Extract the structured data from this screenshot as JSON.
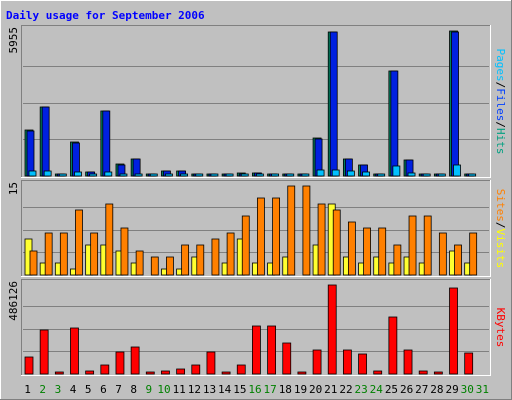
{
  "chart_data": {
    "type": "bar",
    "title": "Daily usage for September 2006",
    "days": [
      "1",
      "2",
      "3",
      "4",
      "5",
      "6",
      "7",
      "8",
      "9",
      "10",
      "11",
      "12",
      "13",
      "14",
      "15",
      "16",
      "17",
      "18",
      "19",
      "20",
      "21",
      "22",
      "23",
      "24",
      "25",
      "26",
      "27",
      "28",
      "29",
      "30",
      "31"
    ],
    "weekend_days": [
      "2",
      "3",
      "9",
      "10",
      "16",
      "17",
      "23",
      "24",
      "30",
      "31"
    ],
    "panels": [
      {
        "name": "pages-files-hits",
        "max_label": "5955",
        "ymax": 5955,
        "axis_label_parts": [
          {
            "text": "Pages",
            "color": "#00c0ff"
          },
          {
            "text": "/",
            "color": "#000000"
          },
          {
            "text": "Files",
            "color": "#0040ff"
          },
          {
            "text": "/",
            "color": "#000000"
          },
          {
            "text": "Hits",
            "color": "#00a080"
          }
        ],
        "series": [
          {
            "name": "Hits",
            "color": "#008060",
            "values": [
              1870,
              2850,
              80,
              1390,
              160,
              2680,
              480,
              710,
              40,
              200,
              210,
              60,
              70,
              40,
              110,
              140,
              80,
              60,
              40,
              1550,
              5920,
              700,
              450,
              50,
              4330,
              650,
              60,
              50,
              5955,
              80,
              0
            ]
          },
          {
            "name": "Files",
            "color": "#0020e0",
            "values": [
              1860,
              2830,
              70,
              1370,
              150,
              2660,
              470,
              700,
              40,
              200,
              200,
              50,
              60,
              40,
              100,
              130,
              70,
              60,
              40,
              1530,
              5900,
              690,
              440,
              50,
              4310,
              640,
              60,
              50,
              5900,
              70,
              0
            ]
          },
          {
            "name": "Pages",
            "color": "#00c0ff",
            "values": [
              200,
              200,
              30,
              180,
              30,
              150,
              100,
              80,
              10,
              30,
              30,
              20,
              20,
              10,
              30,
              40,
              30,
              20,
              10,
              260,
              260,
              200,
              150,
              20,
              420,
              120,
              30,
              20,
              450,
              30,
              0
            ]
          }
        ]
      },
      {
        "name": "sites-visits",
        "max_label": "15",
        "ymax": 15,
        "axis_label_parts": [
          {
            "text": "Sites",
            "color": "#ff8000"
          },
          {
            "text": "/",
            "color": "#000000"
          },
          {
            "text": "Visits",
            "color": "#ffff00"
          }
        ],
        "series": [
          {
            "name": "Visits",
            "color": "#ffff30",
            "values": [
              6,
              2,
              2,
              1,
              5,
              5,
              4,
              2,
              0,
              1,
              1,
              3,
              0,
              2,
              6,
              2,
              2,
              3,
              0,
              5,
              12,
              3,
              2,
              3,
              2,
              3,
              2,
              0,
              4,
              2,
              0
            ]
          },
          {
            "name": "Sites",
            "color": "#ff8000",
            "values": [
              4,
              7,
              7,
              11,
              7,
              12,
              8,
              4,
              3,
              3,
              5,
              5,
              6,
              7,
              10,
              13,
              13,
              15,
              15,
              12,
              11,
              9,
              8,
              8,
              5,
              10,
              10,
              7,
              5,
              7,
              0
            ]
          }
        ]
      },
      {
        "name": "kbytes",
        "max_label": "486126",
        "ymax": 486126,
        "axis_label_parts": [
          {
            "text": "KBytes",
            "color": "#ff0000"
          }
        ],
        "series": [
          {
            "name": "KBytes",
            "color": "#ff0000",
            "values": [
              95000,
              240000,
              12000,
              250000,
              15000,
              50000,
              120000,
              145000,
              5000,
              15000,
              30000,
              50000,
              120000,
              5000,
              50000,
              260000,
              260000,
              170000,
              8000,
              130000,
              486000,
              130000,
              110000,
              15000,
              310000,
              130000,
              15000,
              5000,
              470000,
              115000,
              0
            ]
          }
        ]
      }
    ]
  }
}
